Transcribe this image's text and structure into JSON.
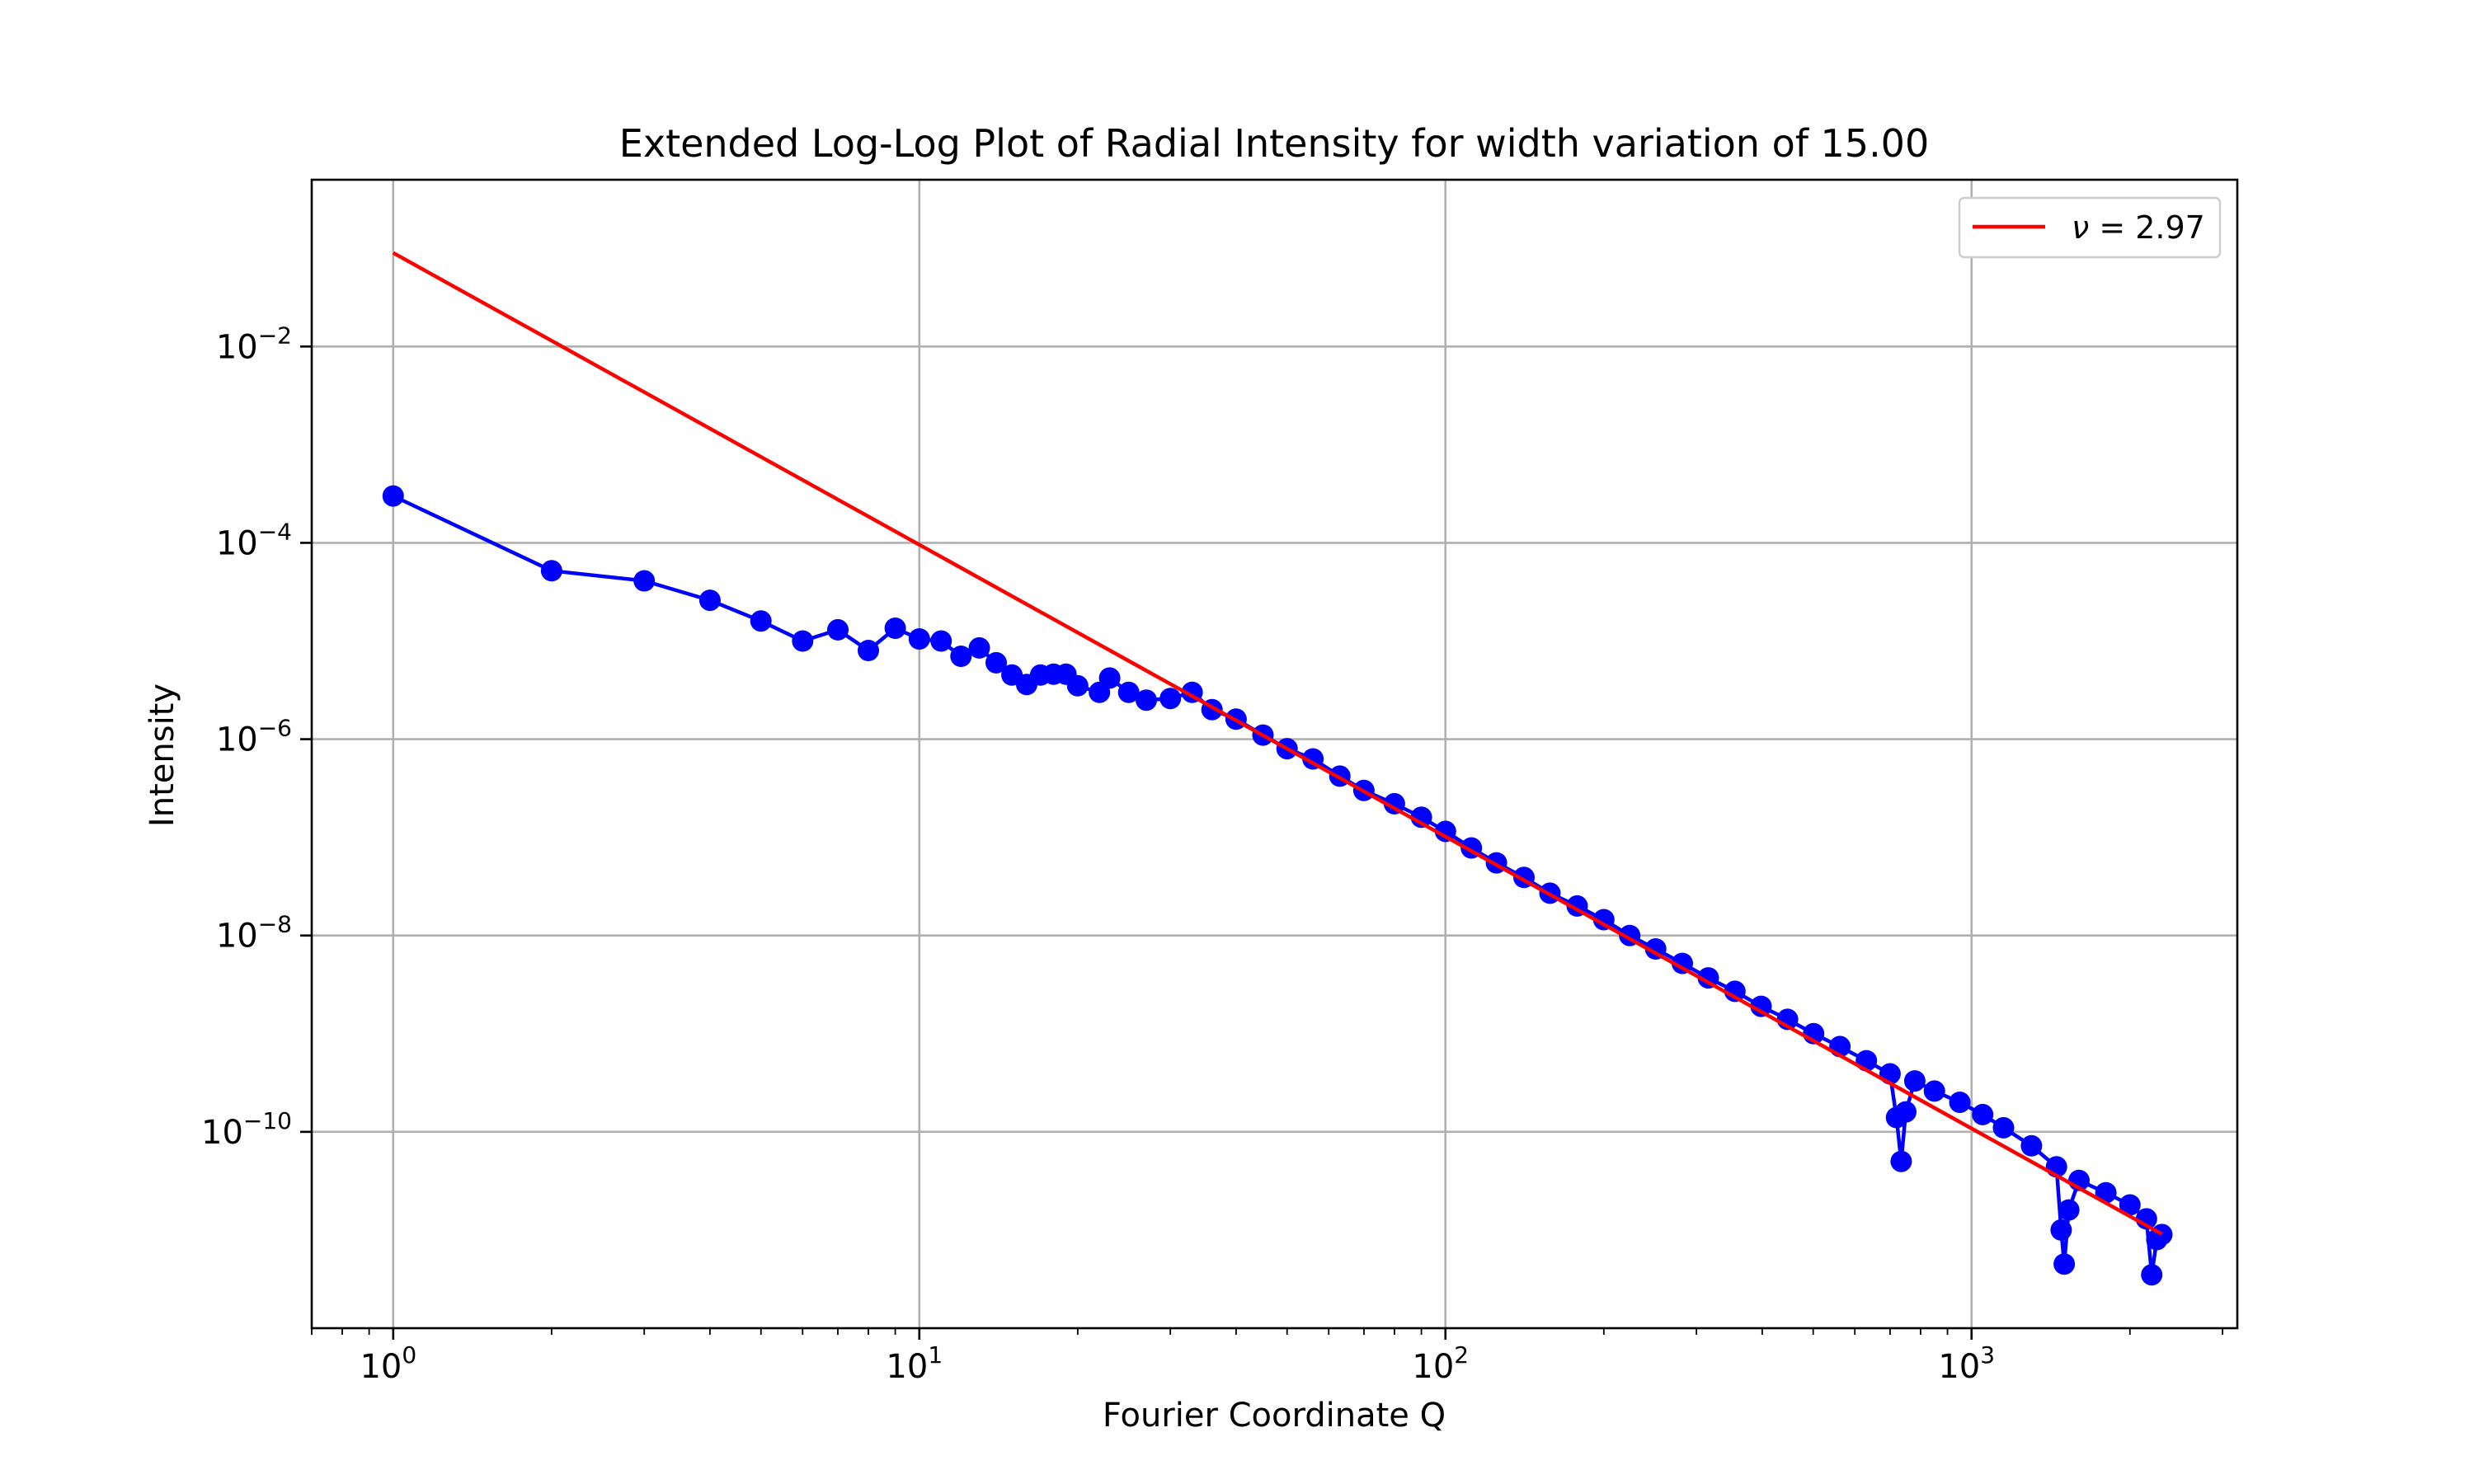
{
  "chart_data": {
    "type": "scatter",
    "title": "Extended Log-Log Plot of Radial Intensity for width variation of 15.00",
    "xlabel": "Fourier Coordinate Q",
    "ylabel": "Intensity",
    "xscale": "log",
    "yscale": "log",
    "xlim": [
      0.7,
      3200
    ],
    "ylim": [
      1e-12,
      0.5
    ],
    "grid": true,
    "legend_position": "top-right",
    "x_ticks": [
      {
        "value": 1,
        "base": "10",
        "exp": "0"
      },
      {
        "value": 10,
        "base": "10",
        "exp": "1"
      },
      {
        "value": 100,
        "base": "10",
        "exp": "2"
      },
      {
        "value": 1000,
        "base": "10",
        "exp": "3"
      }
    ],
    "y_ticks": [
      {
        "value": 0.01,
        "base": "10",
        "exp": "−2"
      },
      {
        "value": 0.0001,
        "base": "10",
        "exp": "−4"
      },
      {
        "value": 1e-06,
        "base": "10",
        "exp": "−6"
      },
      {
        "value": 1e-08,
        "base": "10",
        "exp": "−8"
      },
      {
        "value": 1e-10,
        "base": "10",
        "exp": "−10"
      }
    ],
    "series": [
      {
        "style": "line-markers",
        "color": "#0000ff",
        "x": [
          1,
          2,
          3,
          4,
          5,
          6,
          7,
          8,
          9,
          10,
          11,
          12,
          13,
          14,
          15,
          16,
          17,
          18,
          19,
          20,
          22,
          23,
          25,
          27,
          30,
          33,
          36,
          40,
          45,
          50,
          56,
          63,
          70,
          80,
          90,
          100,
          112,
          125,
          141,
          158,
          178,
          200,
          224,
          251,
          282,
          316,
          355,
          398,
          447,
          501,
          562,
          631,
          700,
          720,
          735,
          750,
          780,
          850,
          950,
          1050,
          1150,
          1300,
          1450,
          1480,
          1500,
          1530,
          1600,
          1800,
          2000,
          2150,
          2200,
          2250,
          2300
        ],
        "y": [
          0.0003,
          5.2e-05,
          4.1e-05,
          2.6e-05,
          1.6e-05,
          1e-05,
          1.3e-05,
          8e-06,
          1.35e-05,
          1.05e-05,
          1e-05,
          7e-06,
          8.5e-06,
          6e-06,
          4.5e-06,
          3.6e-06,
          4.5e-06,
          4.6e-06,
          4.6e-06,
          3.5e-06,
          3e-06,
          4.2e-06,
          3e-06,
          2.5e-06,
          2.6e-06,
          3e-06,
          2e-06,
          1.6e-06,
          1.1e-06,
          8e-07,
          6.3e-07,
          4.2e-07,
          3e-07,
          2.2e-07,
          1.6e-07,
          1.15e-07,
          7.8e-08,
          5.5e-08,
          3.9e-08,
          2.7e-08,
          2e-08,
          1.45e-08,
          1e-08,
          7.3e-09,
          5.2e-09,
          3.7e-09,
          2.7e-09,
          1.9e-09,
          1.4e-09,
          1e-09,
          7.4e-10,
          5.3e-10,
          3.9e-10,
          1.4e-10,
          5e-11,
          1.6e-10,
          3.3e-10,
          2.6e-10,
          2e-10,
          1.5e-10,
          1.1e-10,
          7.2e-11,
          4.4e-11,
          1e-11,
          4.5e-12,
          1.6e-11,
          3.2e-11,
          2.4e-11,
          1.8e-11,
          1.3e-11,
          3.5e-12,
          8e-12,
          9e-12
        ]
      },
      {
        "name": "ν = 2.97",
        "style": "line",
        "color": "#ff0000",
        "x": [
          1,
          2300
        ],
        "y": [
          0.09,
          9.1e-12
        ]
      }
    ]
  },
  "legend": {
    "label": "ν = 2.97",
    "label_symbol": "ν",
    "label_rest": " = 2.97"
  }
}
